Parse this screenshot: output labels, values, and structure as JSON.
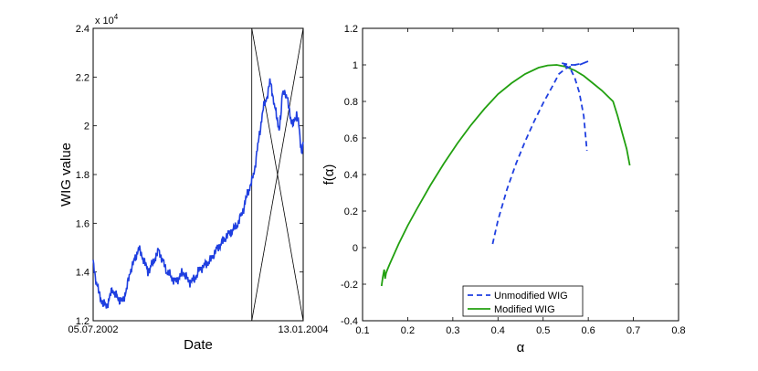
{
  "chart_data": [
    {
      "type": "line",
      "xlabel": "Date",
      "ylabel": "WIG value",
      "exponent_label": "x 10",
      "exponent_power": "4",
      "ylim": [
        1.2,
        2.4
      ],
      "yticks": [
        "1.2",
        "1.4",
        "1.6",
        "1.8",
        "2",
        "2.2",
        "2.4"
      ],
      "xtick_labels": [
        "05.07.2002",
        "13.01.2004"
      ],
      "n_days": 385,
      "highlight_window_start_day": 290,
      "series": [
        {
          "name": "WIG",
          "color": "#1f3fe0",
          "x": [
            0,
            4,
            8,
            12,
            18,
            25,
            35,
            45,
            55,
            63,
            70,
            78,
            83,
            88,
            93,
            100,
            110,
            120,
            128,
            135,
            143,
            150,
            158,
            165,
            175,
            185,
            195,
            205,
            215,
            225,
            235,
            245,
            255,
            265,
            275,
            282,
            290,
            295,
            300,
            305,
            310,
            315,
            320,
            323,
            326,
            330,
            335,
            340,
            343,
            346,
            349,
            353,
            357,
            360,
            363,
            366,
            369,
            372,
            375,
            378,
            381,
            384
          ],
          "values": [
            1.44,
            1.38,
            1.34,
            1.3,
            1.27,
            1.26,
            1.33,
            1.29,
            1.28,
            1.35,
            1.42,
            1.46,
            1.5,
            1.47,
            1.45,
            1.4,
            1.44,
            1.49,
            1.44,
            1.4,
            1.38,
            1.36,
            1.38,
            1.4,
            1.36,
            1.37,
            1.41,
            1.43,
            1.45,
            1.49,
            1.52,
            1.55,
            1.57,
            1.6,
            1.66,
            1.72,
            1.77,
            1.82,
            1.9,
            1.98,
            2.06,
            2.1,
            2.14,
            2.18,
            2.16,
            2.1,
            2.04,
            1.99,
            2.03,
            2.13,
            2.15,
            2.12,
            2.09,
            2.05,
            2.01,
            2.0,
            2.03,
            2.05,
            2.02,
            1.95,
            1.89,
            1.94
          ]
        }
      ]
    },
    {
      "type": "line",
      "xlabel": "α",
      "ylabel": "f(α)",
      "xlim": [
        0.1,
        0.8
      ],
      "ylim": [
        -0.4,
        1.2
      ],
      "xticks": [
        "0.1",
        "0.2",
        "0.3",
        "0.4",
        "0.5",
        "0.6",
        "0.7",
        "0.8"
      ],
      "yticks": [
        "-0.4",
        "-0.2",
        "0",
        "0.2",
        "0.4",
        "0.6",
        "0.8",
        "1",
        "1.2"
      ],
      "legend_position": "bottom-center",
      "series": [
        {
          "name": "Unmodified WIG",
          "color": "#1f3fe0",
          "style": "dashed",
          "x": [
            0.388,
            0.4,
            0.42,
            0.44,
            0.46,
            0.48,
            0.5,
            0.52,
            0.535,
            0.55,
            0.57,
            0.59,
            0.6,
            0.58,
            0.56,
            0.54,
            0.56,
            0.57,
            0.58,
            0.59,
            0.597
          ],
          "y": [
            0.02,
            0.15,
            0.32,
            0.46,
            0.58,
            0.69,
            0.79,
            0.88,
            0.95,
            0.98,
            1.0,
            1.01,
            1.02,
            1.0,
            1.0,
            1.01,
            0.98,
            0.93,
            0.85,
            0.72,
            0.53
          ]
        },
        {
          "name": "Modified WIG",
          "color": "#22a010",
          "style": "solid",
          "x": [
            0.142,
            0.145,
            0.148,
            0.15,
            0.152,
            0.155,
            0.16,
            0.18,
            0.2,
            0.22,
            0.25,
            0.28,
            0.31,
            0.34,
            0.37,
            0.4,
            0.43,
            0.46,
            0.49,
            0.51,
            0.53,
            0.55,
            0.57,
            0.59,
            0.61,
            0.63,
            0.655,
            0.665,
            0.675,
            0.685,
            0.692
          ],
          "y": [
            -0.21,
            -0.16,
            -0.12,
            -0.17,
            -0.14,
            -0.12,
            -0.09,
            0.02,
            0.12,
            0.21,
            0.34,
            0.46,
            0.57,
            0.67,
            0.76,
            0.84,
            0.9,
            0.95,
            0.985,
            0.997,
            1.0,
            0.99,
            0.97,
            0.94,
            0.9,
            0.86,
            0.8,
            0.72,
            0.63,
            0.54,
            0.45
          ]
        }
      ]
    }
  ]
}
